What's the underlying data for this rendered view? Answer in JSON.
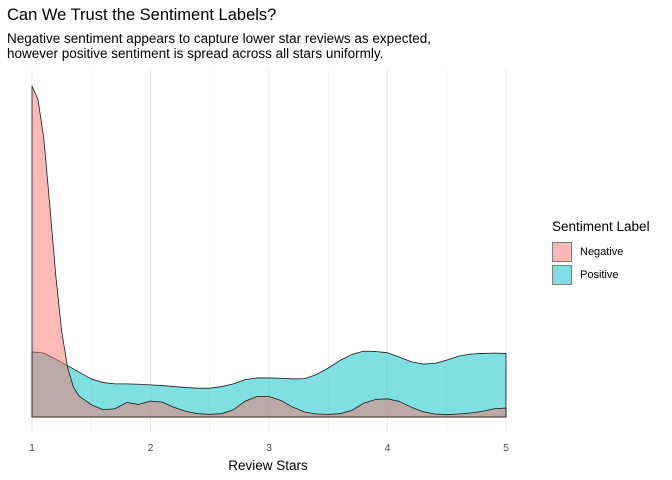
{
  "chart_data": {
    "type": "area",
    "title": "Can We Trust the Sentiment Labels?",
    "subtitle": [
      "Negative sentiment appears to capture lower star reviews as expected,",
      "however positive sentiment is spread across all stars uniformly."
    ],
    "xlabel": "Review Stars",
    "ylabel": "",
    "xlim": [
      1,
      5
    ],
    "ylim": [
      0,
      1.0
    ],
    "x_ticks": [
      "1",
      "2",
      "3",
      "4",
      "5"
    ],
    "grid": "vertical",
    "legend": {
      "title": "Sentiment Label",
      "position": "right",
      "entries": [
        "Negative",
        "Positive"
      ]
    },
    "series": [
      {
        "name": "Negative",
        "color": "#F8766D",
        "x": [
          1.0,
          1.05,
          1.1,
          1.15,
          1.2,
          1.25,
          1.3,
          1.35,
          1.4,
          1.45,
          1.5,
          1.6,
          1.7,
          1.8,
          1.9,
          2.0,
          2.1,
          2.2,
          2.3,
          2.4,
          2.5,
          2.6,
          2.7,
          2.8,
          2.9,
          3.0,
          3.1,
          3.2,
          3.3,
          3.4,
          3.5,
          3.6,
          3.7,
          3.8,
          3.9,
          4.0,
          4.1,
          4.2,
          4.3,
          4.4,
          4.5,
          4.6,
          4.7,
          4.8,
          4.9,
          5.0
        ],
        "y": [
          1.0,
          0.96,
          0.84,
          0.64,
          0.43,
          0.26,
          0.15,
          0.09,
          0.062,
          0.05,
          0.037,
          0.022,
          0.025,
          0.044,
          0.038,
          0.048,
          0.045,
          0.029,
          0.017,
          0.01,
          0.008,
          0.01,
          0.022,
          0.048,
          0.062,
          0.062,
          0.05,
          0.03,
          0.015,
          0.009,
          0.008,
          0.01,
          0.02,
          0.042,
          0.053,
          0.055,
          0.047,
          0.03,
          0.016,
          0.009,
          0.007,
          0.009,
          0.012,
          0.017,
          0.025,
          0.027
        ]
      },
      {
        "name": "Positive",
        "color": "#00BFC4",
        "x": [
          1.0,
          1.1,
          1.2,
          1.3,
          1.4,
          1.5,
          1.6,
          1.7,
          1.8,
          1.9,
          2.0,
          2.1,
          2.2,
          2.3,
          2.4,
          2.5,
          2.6,
          2.7,
          2.8,
          2.9,
          3.0,
          3.1,
          3.2,
          3.3,
          3.4,
          3.5,
          3.6,
          3.7,
          3.8,
          3.9,
          4.0,
          4.1,
          4.2,
          4.3,
          4.4,
          4.5,
          4.6,
          4.7,
          4.8,
          4.9,
          5.0
        ],
        "y": [
          0.197,
          0.193,
          0.175,
          0.155,
          0.135,
          0.115,
          0.104,
          0.1,
          0.1,
          0.099,
          0.097,
          0.095,
          0.092,
          0.089,
          0.087,
          0.087,
          0.092,
          0.1,
          0.113,
          0.118,
          0.118,
          0.117,
          0.115,
          0.116,
          0.128,
          0.148,
          0.171,
          0.189,
          0.199,
          0.198,
          0.194,
          0.181,
          0.167,
          0.16,
          0.162,
          0.172,
          0.184,
          0.19,
          0.192,
          0.193,
          0.192
        ]
      }
    ]
  }
}
